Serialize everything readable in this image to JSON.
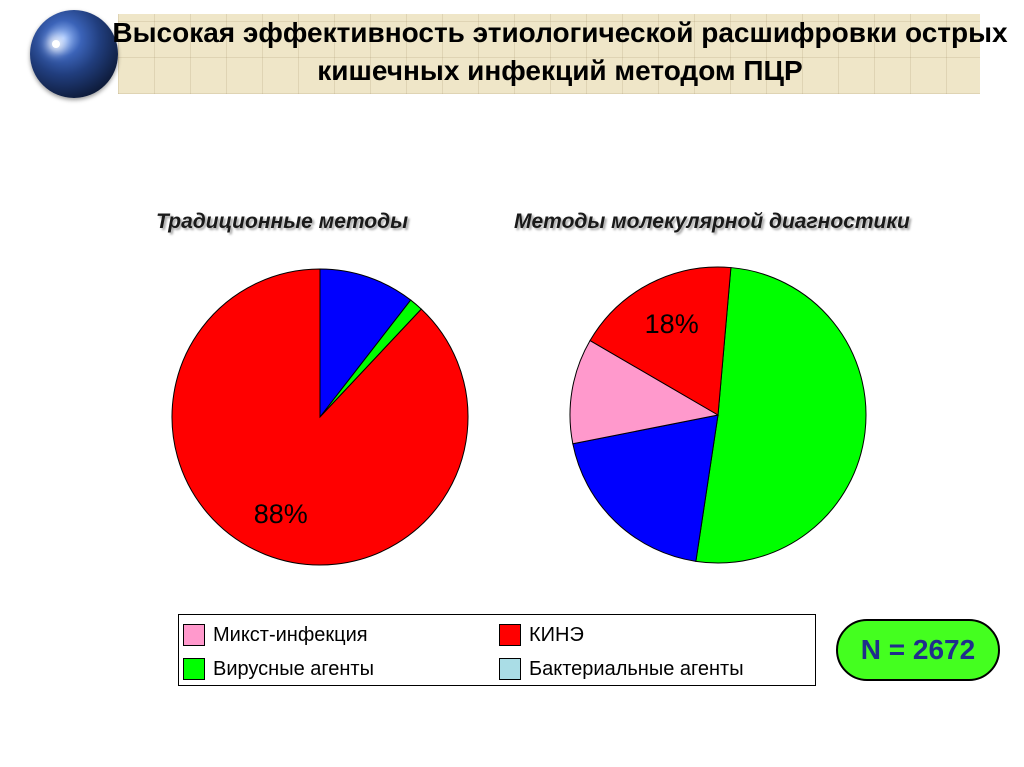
{
  "title": "Высокая эффективность этиологической расшифровки острых кишечных инфекций методом ПЦР",
  "colors": {
    "mixed": "#ff99cc",
    "kine": "#ff0000",
    "viral": "#00ff00",
    "bacterial": "#0000ff",
    "bacterial_legend": "#aadde6"
  },
  "legend": [
    {
      "label": "Микст-инфекция",
      "color": "#ff99cc"
    },
    {
      "label": "КИНЭ",
      "color": "#ff0000"
    },
    {
      "label": "Вирусные агенты",
      "color": "#00ff00"
    },
    {
      "label": "Бактериальные агенты",
      "color": "#aadde6"
    }
  ],
  "n_label": "N = 2672",
  "chart_data": [
    {
      "type": "pie",
      "title": "Традиционные методы",
      "slices": [
        {
          "category": "Бактериальные агенты",
          "value": 10.5,
          "color": "#0000ff"
        },
        {
          "category": "Вирусные агенты",
          "value": 1.5,
          "color": "#00ff00"
        },
        {
          "category": "КИНЭ",
          "value": 88,
          "color": "#ff0000",
          "label": "88%"
        }
      ]
    },
    {
      "type": "pie",
      "title": "Методы молекулярной диагностики",
      "slices": [
        {
          "category": "Вирусные агенты",
          "value": 51,
          "color": "#00ff00"
        },
        {
          "category": "Бактериальные агенты",
          "value": 19.5,
          "color": "#0000ff"
        },
        {
          "category": "Микст-инфекция",
          "value": 11.5,
          "color": "#ff99cc"
        },
        {
          "category": "КИНЭ",
          "value": 18,
          "color": "#ff0000",
          "label": "18%"
        }
      ]
    }
  ]
}
